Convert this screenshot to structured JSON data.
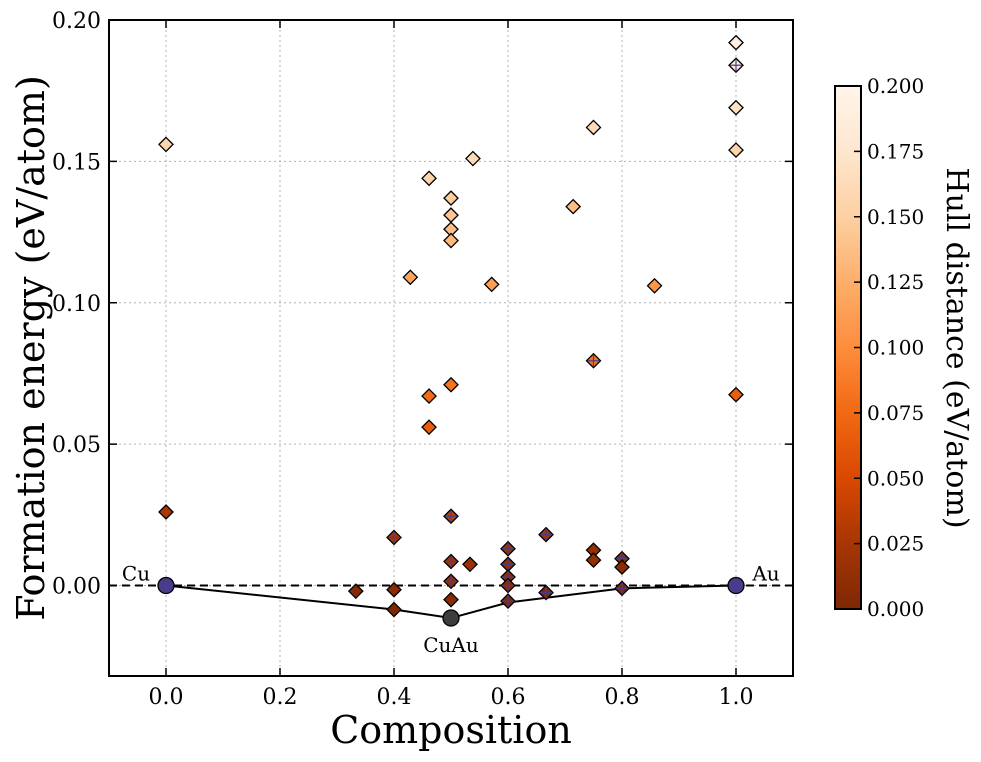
{
  "chart_data": {
    "type": "scatter",
    "xlabel": "Composition",
    "ylabel": "Formation energy (eV/atom)",
    "xlim": [
      -0.1,
      1.1
    ],
    "ylim": [
      -0.032,
      0.2
    ],
    "xticks": [
      0.0,
      0.2,
      0.4,
      0.6,
      0.8,
      1.0
    ],
    "xtick_labels": [
      "0.0",
      "0.2",
      "0.4",
      "0.6",
      "0.8",
      "1.0"
    ],
    "yticks": [
      0.0,
      0.05,
      0.1,
      0.15,
      0.2
    ],
    "ytick_labels": [
      "0.00",
      "0.05",
      "0.10",
      "0.15",
      "0.20"
    ],
    "grid": true,
    "colorbar": {
      "label": "Hull distance (eV/atom)",
      "range": [
        0.0,
        0.2
      ],
      "ticks": [
        0.0,
        0.025,
        0.05,
        0.075,
        0.1,
        0.125,
        0.15,
        0.175,
        0.2
      ],
      "tick_labels": [
        "0.000",
        "0.025",
        "0.050",
        "0.075",
        "0.100",
        "0.125",
        "0.150",
        "0.175",
        "0.200"
      ],
      "colormap": "Oranges_r",
      "stops": [
        "#7f2704",
        "#a63603",
        "#d94801",
        "#f16913",
        "#fd8d3c",
        "#fdae6b",
        "#fdd0a2",
        "#fee6ce",
        "#fff5eb"
      ]
    },
    "reference_line": {
      "y": 0.0,
      "style": "dashed"
    },
    "hull": {
      "x": [
        0.0,
        0.4,
        0.5,
        0.6,
        0.8,
        1.0
      ],
      "y": [
        0.0,
        -0.0085,
        -0.0115,
        -0.006,
        -0.001,
        0.0
      ]
    },
    "stable_points": [
      {
        "x": 0.0,
        "y": 0.0,
        "color": "#483d8b"
      },
      {
        "x": 0.5,
        "y": -0.0115,
        "color": "#3d3d3d"
      },
      {
        "x": 1.0,
        "y": 0.0,
        "color": "#483d8b"
      }
    ],
    "annotations": [
      {
        "text": "Cu",
        "x": 0.0,
        "y": 0.0
      },
      {
        "text": "CuAu",
        "x": 0.5,
        "y": -0.0115
      },
      {
        "text": "Au",
        "x": 1.0,
        "y": 0.0
      }
    ],
    "points": [
      {
        "x": 0.0,
        "y": 0.156,
        "hull": 0.156,
        "cross": false
      },
      {
        "x": 0.0,
        "y": 0.026,
        "hull": 0.026,
        "cross": false
      },
      {
        "x": 0.333,
        "y": -0.002,
        "hull": 0.004,
        "cross": false
      },
      {
        "x": 0.4,
        "y": 0.017,
        "hull": 0.025,
        "cross": true
      },
      {
        "x": 0.4,
        "y": -0.0015,
        "hull": 0.007,
        "cross": false
      },
      {
        "x": 0.4,
        "y": -0.0085,
        "hull": 0.0,
        "cross": false
      },
      {
        "x": 0.4286,
        "y": 0.109,
        "hull": 0.118,
        "cross": false
      },
      {
        "x": 0.4615,
        "y": 0.144,
        "hull": 0.154,
        "cross": false
      },
      {
        "x": 0.4615,
        "y": 0.067,
        "hull": 0.077,
        "cross": false
      },
      {
        "x": 0.4615,
        "y": 0.056,
        "hull": 0.066,
        "cross": false
      },
      {
        "x": 0.5,
        "y": 0.137,
        "hull": 0.148,
        "cross": false
      },
      {
        "x": 0.5,
        "y": 0.131,
        "hull": 0.142,
        "cross": false
      },
      {
        "x": 0.5,
        "y": 0.126,
        "hull": 0.137,
        "cross": false
      },
      {
        "x": 0.5,
        "y": 0.122,
        "hull": 0.133,
        "cross": false
      },
      {
        "x": 0.5,
        "y": 0.071,
        "hull": 0.083,
        "cross": false
      },
      {
        "x": 0.5,
        "y": 0.0245,
        "hull": 0.036,
        "cross": true
      },
      {
        "x": 0.5,
        "y": 0.0085,
        "hull": 0.02,
        "cross": true
      },
      {
        "x": 0.5,
        "y": 0.0015,
        "hull": 0.013,
        "cross": true
      },
      {
        "x": 0.5,
        "y": -0.005,
        "hull": 0.0065,
        "cross": false
      },
      {
        "x": 0.5,
        "y": -0.0115,
        "hull": 0.0,
        "cross": false
      },
      {
        "x": 0.5333,
        "y": 0.0075,
        "hull": 0.018,
        "cross": false
      },
      {
        "x": 0.5385,
        "y": 0.151,
        "hull": 0.161,
        "cross": false
      },
      {
        "x": 0.5714,
        "y": 0.1065,
        "hull": 0.114,
        "cross": false
      },
      {
        "x": 0.6,
        "y": 0.013,
        "hull": 0.019,
        "cross": true
      },
      {
        "x": 0.6,
        "y": 0.0075,
        "hull": 0.0135,
        "cross": true
      },
      {
        "x": 0.6,
        "y": 0.003,
        "hull": 0.009,
        "cross": true
      },
      {
        "x": 0.6,
        "y": 0.0,
        "hull": 0.006,
        "cross": true
      },
      {
        "x": 0.6,
        "y": -0.0055,
        "hull": 0.0005,
        "cross": true
      },
      {
        "x": 0.6667,
        "y": 0.018,
        "hull": 0.022,
        "cross": true
      },
      {
        "x": 0.6667,
        "y": -0.0025,
        "hull": 0.0015,
        "cross": true
      },
      {
        "x": 0.7143,
        "y": 0.134,
        "hull": 0.137,
        "cross": false
      },
      {
        "x": 0.75,
        "y": 0.162,
        "hull": 0.164,
        "cross": false
      },
      {
        "x": 0.75,
        "y": 0.0795,
        "hull": 0.082,
        "cross": true
      },
      {
        "x": 0.75,
        "y": 0.0125,
        "hull": 0.015,
        "cross": false
      },
      {
        "x": 0.75,
        "y": 0.009,
        "hull": 0.011,
        "cross": false
      },
      {
        "x": 0.8,
        "y": 0.0095,
        "hull": 0.0105,
        "cross": true
      },
      {
        "x": 0.8,
        "y": 0.0065,
        "hull": 0.0075,
        "cross": false
      },
      {
        "x": 0.8,
        "y": -0.001,
        "hull": 0.0,
        "cross": true
      },
      {
        "x": 0.8571,
        "y": 0.106,
        "hull": 0.107,
        "cross": false
      },
      {
        "x": 1.0,
        "y": 0.192,
        "hull": 0.192,
        "cross": false
      },
      {
        "x": 1.0,
        "y": 0.184,
        "hull": 0.184,
        "cross": true
      },
      {
        "x": 1.0,
        "y": 0.169,
        "hull": 0.169,
        "cross": false
      },
      {
        "x": 1.0,
        "y": 0.154,
        "hull": 0.154,
        "cross": false
      },
      {
        "x": 1.0,
        "y": 0.0675,
        "hull": 0.0675,
        "cross": false
      }
    ]
  }
}
